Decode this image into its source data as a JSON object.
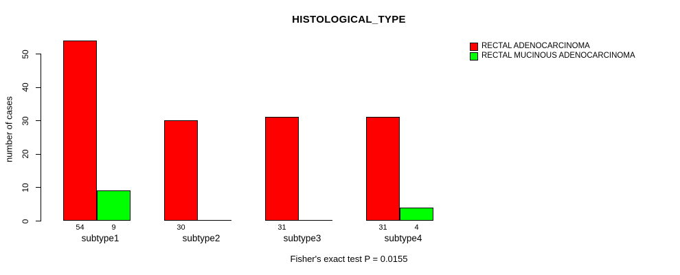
{
  "chart_data": {
    "type": "bar",
    "title": "HISTOLOGICAL_TYPE",
    "xlabel": "",
    "ylabel": "number of cases",
    "caption": "Fisher's exact test P = 0.0155",
    "categories": [
      "subtype1",
      "subtype2",
      "subtype3",
      "subtype4"
    ],
    "series": [
      {
        "name": "RECTAL ADENOCARCINOMA",
        "color": "#ff0000",
        "values": [
          54,
          30,
          31,
          31
        ]
      },
      {
        "name": "RECTAL MUCINOUS ADENOCARCINOMA",
        "color": "#00ff00",
        "values": [
          9,
          0,
          0,
          4
        ]
      }
    ],
    "bar_value_labels": [
      [
        54,
        30,
        31,
        31
      ],
      [
        9,
        null,
        null,
        4
      ]
    ],
    "yticks": [
      0,
      10,
      20,
      30,
      40,
      50
    ],
    "ylim": [
      0,
      54
    ],
    "grid": false,
    "legend_position": "top-right-outside",
    "bar_outline_color": "#000000",
    "background_color": "#ffffff"
  }
}
